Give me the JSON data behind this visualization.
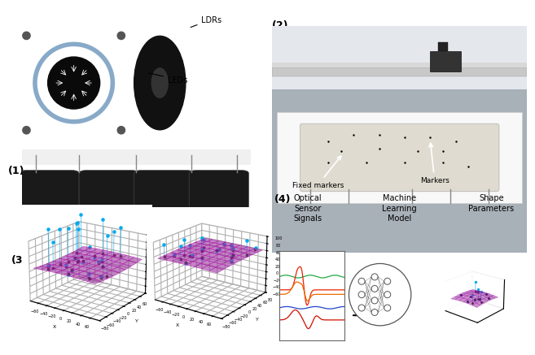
{
  "bg_color": "#ffffff",
  "label_1": "(1)",
  "label_2": "(2)",
  "label_3": "(3)",
  "label_4": "(4)",
  "ldr_label": "LDRs",
  "led_label": "LEDs",
  "fixed_markers_label": "Fixed markers",
  "markers_label": "Markers",
  "optical_label": "Optical\nSensor\nSignals",
  "ml_label": "Machine\nLearning\nModel",
  "shape_label": "Shape\nParameters",
  "surf_color": "#cc44cc",
  "line_color_cyan": "#00aaee",
  "line_green": "#22aa44",
  "line_red": "#ee2200",
  "line_orange": "#ee6600",
  "line_blue": "#2244cc",
  "line_dark_red": "#cc1100",
  "sensor_bg": "#1a1208",
  "ring_color": "#88aac8",
  "robot_dark": "#222222",
  "photo1_bg": "#888888",
  "photo2_bg": "#b0b8c0",
  "ceil_color": "#e0e0e0",
  "floor_color": "#f4f4f4"
}
